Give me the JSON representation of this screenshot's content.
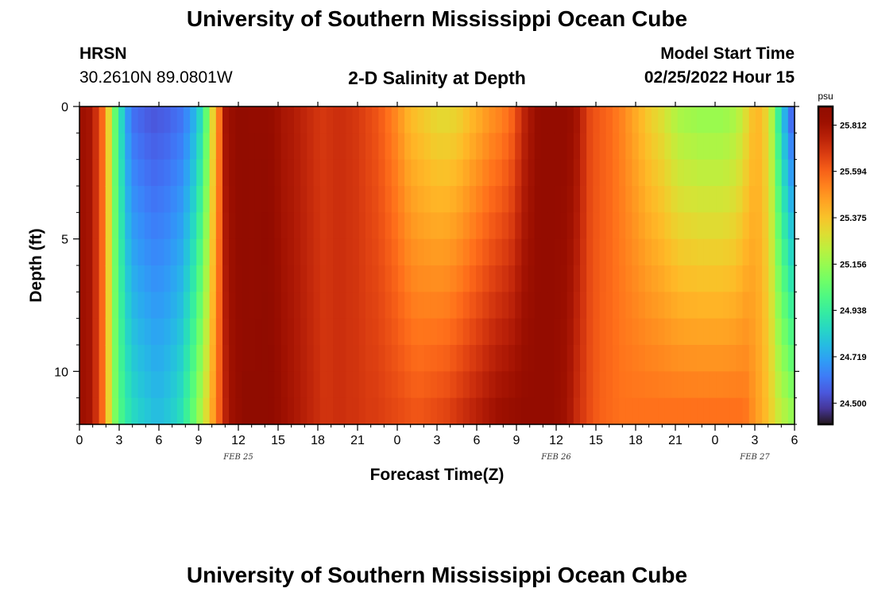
{
  "page": {
    "title": "University of Southern Mississippi Ocean Cube",
    "title_repeat": "University of Southern Mississippi Ocean Cube",
    "station_name": "HRSN",
    "station_coords": "30.2610N  89.0801W",
    "plot_title": "2-D Salinity at Depth",
    "model_start_label": "Model Start Time",
    "model_start_value": "02/25/2022 Hour 15"
  },
  "chart_data": {
    "type": "heatmap",
    "title": "2-D Salinity at Depth",
    "xlabel": "Forecast Time(Z)",
    "ylabel": "Depth (ft)",
    "x_unit_hours_range": [
      0,
      54
    ],
    "x_tick_labels": [
      "0",
      "3",
      "6",
      "9",
      "12",
      "15",
      "18",
      "21",
      "0",
      "3",
      "6",
      "9",
      "12",
      "15",
      "18",
      "21",
      "0",
      "3",
      "6"
    ],
    "date_labels": [
      {
        "label": "FEB 25",
        "hour": 12
      },
      {
        "label": "FEB 26",
        "hour": 36
      },
      {
        "label": "FEB 27",
        "hour": 51
      }
    ],
    "ylim": [
      0,
      12
    ],
    "y_tick_labels": [
      "0",
      "5",
      "10"
    ],
    "colorbar": {
      "unit": "psu",
      "range": [
        24.4,
        25.9
      ],
      "tick_labels": [
        "25.812",
        "25.594",
        "25.375",
        "25.156",
        "24.938",
        "24.719",
        "24.500"
      ]
    },
    "surface_salinity_by_hour": [
      25.82,
      25.8,
      25.71,
      25.58,
      25.33,
      25.05,
      24.85,
      24.68,
      24.6,
      24.58,
      24.56,
      24.55,
      24.56,
      24.57,
      24.59,
      24.61,
      24.66,
      24.74,
      24.85,
      25.05,
      25.33,
      25.55,
      25.8,
      25.84,
      25.87,
      25.87,
      25.86,
      25.86,
      25.86,
      25.85,
      25.82,
      25.79,
      25.78,
      25.76,
      25.74,
      25.72,
      25.7,
      25.69,
      25.7,
      25.71,
      25.71,
      25.7,
      25.69,
      25.67,
      25.65,
      25.63,
      25.6,
      25.56,
      25.52,
      25.47,
      25.42,
      25.39,
      25.37,
      25.35,
      25.33,
      25.32,
      25.32,
      25.33,
      25.35,
      25.38,
      25.41,
      25.44,
      25.47,
      25.5,
      25.52,
      25.55,
      25.59,
      25.67,
      25.75,
      25.8,
      25.85,
      25.86,
      25.86,
      25.86,
      25.86,
      25.84,
      25.8,
      25.72,
      25.65,
      25.62,
      25.6,
      25.58,
      25.55,
      25.52,
      25.48,
      25.44,
      25.4,
      25.36,
      25.33,
      25.3,
      25.26,
      25.22,
      25.19,
      25.18,
      25.17,
      25.16,
      25.16,
      25.16,
      25.16,
      25.17,
      25.19,
      25.23,
      25.3,
      25.38,
      25.4,
      25.34,
      25.2,
      24.95,
      24.75,
      24.6
    ],
    "bottom_salinity_by_hour": [
      25.82,
      25.8,
      25.71,
      25.58,
      25.33,
      25.1,
      24.98,
      24.9,
      24.85,
      24.82,
      24.8,
      24.78,
      24.78,
      24.8,
      24.83,
      24.87,
      24.95,
      25.05,
      25.17,
      25.3,
      25.45,
      25.6,
      25.75,
      25.82,
      25.85,
      25.87,
      25.87,
      25.88,
      25.9,
      25.88,
      25.85,
      25.82,
      25.8,
      25.78,
      25.76,
      25.74,
      25.72,
      25.7,
      25.7,
      25.71,
      25.71,
      25.7,
      25.7,
      25.69,
      25.68,
      25.68,
      25.67,
      25.66,
      25.65,
      25.64,
      25.63,
      25.62,
      25.62,
      25.63,
      25.64,
      25.65,
      25.66,
      25.68,
      25.7,
      25.72,
      25.74,
      25.76,
      25.78,
      25.8,
      25.82,
      25.83,
      25.84,
      25.85,
      25.86,
      25.86,
      25.86,
      25.86,
      25.86,
      25.84,
      25.82,
      25.78,
      25.72,
      25.68,
      25.64,
      25.61,
      25.59,
      25.58,
      25.57,
      25.56,
      25.56,
      25.56,
      25.56,
      25.56,
      25.56,
      25.56,
      25.56,
      25.56,
      25.56,
      25.56,
      25.56,
      25.56,
      25.56,
      25.56,
      25.56,
      25.56,
      25.56,
      25.56,
      25.55,
      25.5,
      25.45,
      25.4,
      25.33,
      25.25,
      25.2,
      25.15
    ],
    "hotspot": {
      "hour_start": 12.5,
      "hour_end": 13.5,
      "depth_start": 10.5,
      "depth_end": 11.5,
      "value": 25.9
    }
  }
}
